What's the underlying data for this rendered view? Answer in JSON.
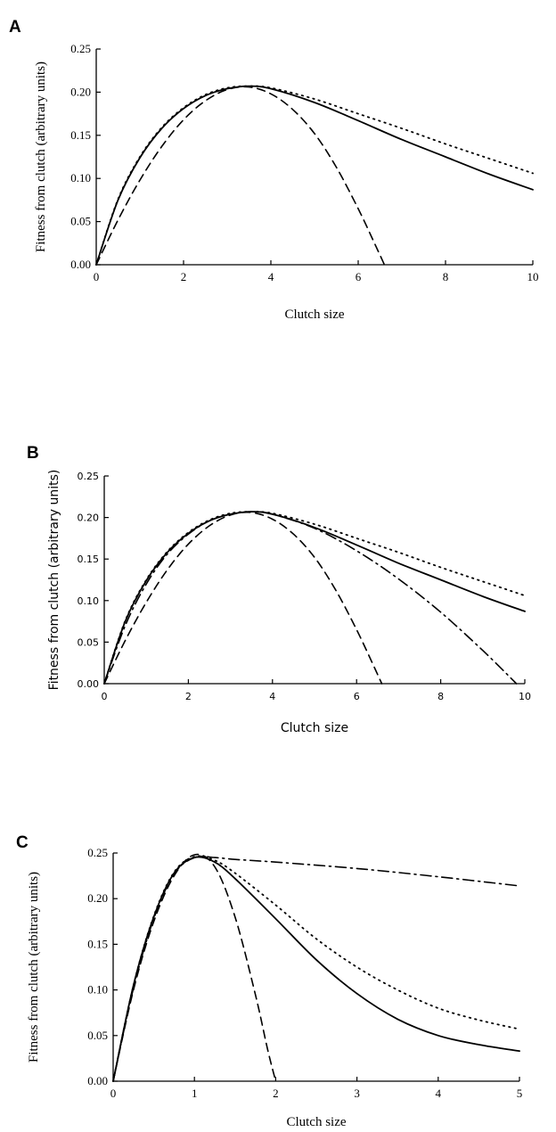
{
  "chart_data": [
    {
      "panel": "A",
      "type": "line",
      "xlabel": "Clutch size",
      "ylabel": "Fitness from clutch (arbitrary units)",
      "xlim": [
        0,
        10
      ],
      "ylim": [
        0,
        0.25
      ],
      "xticks": [
        "0",
        "2",
        "4",
        "6",
        "8",
        "10"
      ],
      "yticks": [
        "0.00",
        "0.05",
        "0.10",
        "0.15",
        "0.20",
        "0.25"
      ],
      "grid": false,
      "series": [
        {
          "style": "solid",
          "x": [
            0,
            0.5,
            1,
            1.5,
            2,
            2.5,
            3,
            3.5,
            4,
            5,
            6,
            7,
            8,
            9,
            10
          ],
          "y": [
            0,
            0.075,
            0.124,
            0.158,
            0.181,
            0.196,
            0.204,
            0.207,
            0.204,
            0.188,
            0.167,
            0.145,
            0.125,
            0.105,
            0.087
          ]
        },
        {
          "style": "dotted",
          "x": [
            0,
            0.5,
            1,
            1.5,
            2,
            2.5,
            3,
            3.5,
            4,
            5,
            6,
            7,
            8,
            9,
            10
          ],
          "y": [
            0,
            0.076,
            0.125,
            0.159,
            0.182,
            0.197,
            0.205,
            0.207,
            0.205,
            0.192,
            0.175,
            0.158,
            0.14,
            0.123,
            0.106
          ]
        },
        {
          "style": "dashed",
          "x": [
            0,
            0.5,
            1,
            1.5,
            2,
            2.5,
            3,
            3.5,
            4,
            4.5,
            5,
            5.5,
            6,
            6.4,
            6.6
          ],
          "y": [
            0,
            0.052,
            0.098,
            0.137,
            0.168,
            0.19,
            0.203,
            0.206,
            0.198,
            0.18,
            0.152,
            0.113,
            0.065,
            0.022,
            0
          ]
        }
      ]
    },
    {
      "panel": "B",
      "type": "line",
      "xlabel": "Clutch size",
      "ylabel": "Fitness from clutch (arbitrary units)",
      "xlim": [
        0,
        10
      ],
      "ylim": [
        0,
        0.25
      ],
      "xticks": [
        "0",
        "2",
        "4",
        "6",
        "8",
        "10"
      ],
      "yticks": [
        "0.00",
        "0.05",
        "0.10",
        "0.15",
        "0.20",
        "0.25"
      ],
      "grid": false,
      "series": [
        {
          "style": "solid",
          "x": [
            0,
            0.5,
            1,
            1.5,
            2,
            2.5,
            3,
            3.5,
            4,
            5,
            6,
            7,
            8,
            9,
            10
          ],
          "y": [
            0,
            0.075,
            0.124,
            0.158,
            0.181,
            0.196,
            0.204,
            0.207,
            0.204,
            0.188,
            0.167,
            0.145,
            0.125,
            0.105,
            0.087
          ]
        },
        {
          "style": "dotted",
          "x": [
            0,
            0.5,
            1,
            1.5,
            2,
            2.5,
            3,
            3.5,
            4,
            5,
            6,
            7,
            8,
            9,
            10
          ],
          "y": [
            0,
            0.076,
            0.125,
            0.159,
            0.182,
            0.197,
            0.205,
            0.207,
            0.205,
            0.192,
            0.175,
            0.158,
            0.14,
            0.123,
            0.106
          ]
        },
        {
          "style": "dashed",
          "x": [
            0,
            0.5,
            1,
            1.5,
            2,
            2.5,
            3,
            3.5,
            4,
            4.5,
            5,
            5.5,
            6,
            6.4,
            6.6
          ],
          "y": [
            0,
            0.052,
            0.098,
            0.137,
            0.168,
            0.19,
            0.203,
            0.206,
            0.198,
            0.18,
            0.152,
            0.113,
            0.065,
            0.022,
            0
          ]
        },
        {
          "style": "dashdot",
          "x": [
            0,
            0.5,
            1,
            1.5,
            2,
            2.5,
            3,
            3.5,
            4,
            5,
            6,
            7,
            8,
            9,
            9.8
          ],
          "y": [
            0,
            0.07,
            0.12,
            0.156,
            0.18,
            0.196,
            0.204,
            0.207,
            0.204,
            0.187,
            0.16,
            0.126,
            0.086,
            0.04,
            0
          ]
        }
      ]
    },
    {
      "panel": "C",
      "type": "line",
      "xlabel": "Clutch size",
      "ylabel": "Fitness from clutch (arbitrary units)",
      "xlim": [
        0,
        5
      ],
      "ylim": [
        0,
        0.25
      ],
      "xticks": [
        "0",
        "1",
        "2",
        "3",
        "4",
        "5"
      ],
      "yticks": [
        "0.00",
        "0.05",
        "0.10",
        "0.15",
        "0.20",
        "0.25"
      ],
      "grid": false,
      "series": [
        {
          "style": "solid",
          "x": [
            0,
            0.25,
            0.5,
            0.75,
            1,
            1.25,
            1.5,
            2,
            2.5,
            3,
            3.5,
            4,
            4.5,
            5
          ],
          "y": [
            0,
            0.105,
            0.18,
            0.228,
            0.245,
            0.24,
            0.222,
            0.178,
            0.133,
            0.096,
            0.068,
            0.05,
            0.04,
            0.033
          ]
        },
        {
          "style": "dotted",
          "x": [
            0,
            0.25,
            0.5,
            0.75,
            1,
            1.25,
            1.5,
            2,
            2.5,
            3,
            3.5,
            4,
            4.5,
            5
          ],
          "y": [
            0,
            0.105,
            0.181,
            0.229,
            0.246,
            0.242,
            0.228,
            0.193,
            0.156,
            0.125,
            0.1,
            0.08,
            0.067,
            0.057
          ]
        },
        {
          "style": "dashed",
          "x": [
            0,
            0.25,
            0.5,
            0.75,
            1,
            1.25,
            1.5,
            1.75,
            1.9,
            2
          ],
          "y": [
            0,
            0.1,
            0.175,
            0.225,
            0.248,
            0.235,
            0.18,
            0.095,
            0.035,
            0
          ]
        },
        {
          "style": "dashdot",
          "x": [
            0,
            0.25,
            0.5,
            0.75,
            1,
            1.25,
            1.5,
            2,
            3,
            4,
            5
          ],
          "y": [
            0,
            0.102,
            0.178,
            0.227,
            0.245,
            0.245,
            0.243,
            0.24,
            0.233,
            0.224,
            0.214
          ]
        }
      ]
    }
  ]
}
